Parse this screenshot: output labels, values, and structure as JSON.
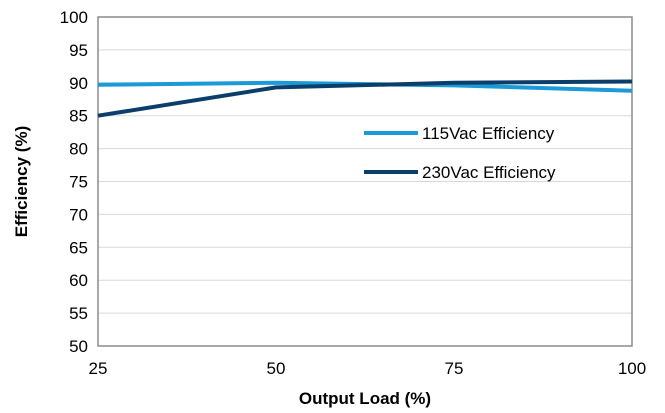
{
  "chart_data": {
    "type": "line",
    "title": "",
    "xlabel": "Output Load (%)",
    "ylabel": "Efficiency (%)",
    "x": [
      25,
      50,
      75,
      100
    ],
    "xlim": [
      25,
      100
    ],
    "ylim": [
      50,
      100
    ],
    "x_ticks": [
      "25",
      "50",
      "75",
      "100"
    ],
    "y_ticks": [
      "50",
      "55",
      "60",
      "65",
      "70",
      "75",
      "80",
      "85",
      "90",
      "95",
      "100"
    ],
    "grid": "horizontal",
    "legend_position": "right",
    "series": [
      {
        "name": "115Vac Efficiency",
        "color": "#1a9ad6",
        "values": [
          89.7,
          90.0,
          89.6,
          88.8
        ]
      },
      {
        "name": "230Vac Efficiency",
        "color": "#0b3e6b",
        "values": [
          85.0,
          89.3,
          90.0,
          90.2
        ]
      }
    ]
  }
}
